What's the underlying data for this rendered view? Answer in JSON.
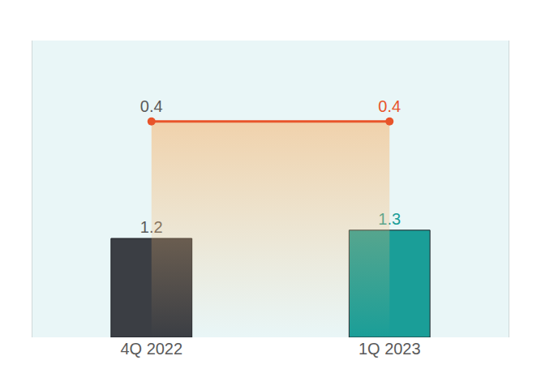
{
  "chart_data": {
    "type": "bar",
    "categories": [
      "4Q 2022",
      "1Q 2023"
    ],
    "series": [
      {
        "type": "bar",
        "values": [
          1.2,
          1.3
        ],
        "colors": [
          "#3b3e44",
          "#1a9e98"
        ]
      },
      {
        "type": "line",
        "values": [
          0.4,
          0.4
        ],
        "color": "#e8542a",
        "axis": "y2",
        "marker": "circle"
      }
    ],
    "ylim": [
      0,
      3.6
    ],
    "y2lim": [
      0,
      0.55
    ],
    "data_labels": true,
    "tick_labels": "x",
    "grid": false
  }
}
